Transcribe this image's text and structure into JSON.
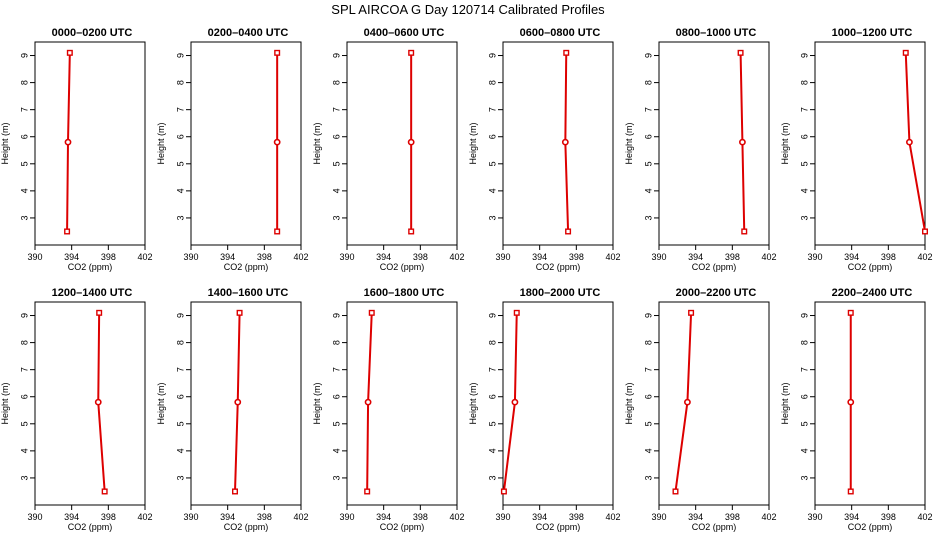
{
  "page": {
    "title": "SPL AIRCOA G  Day 120714  Calibrated Profiles"
  },
  "colors": {
    "series": "#dd0000",
    "axis": "#000000"
  },
  "chart_data": [
    {
      "type": "line",
      "title": "0000–0200 UTC",
      "xlabel": "CO2 (ppm)",
      "ylabel": "Height (m)",
      "xlim": [
        390,
        402
      ],
      "ylim": [
        2,
        9.5
      ],
      "xticks": [
        390,
        394,
        398,
        402
      ],
      "yticks": [
        3,
        4,
        5,
        6,
        7,
        8,
        9
      ],
      "series": [
        {
          "x": [
            393.5,
            393.6,
            393.8
          ],
          "y": [
            2.5,
            5.8,
            9.1
          ]
        }
      ]
    },
    {
      "type": "line",
      "title": "0200–0400 UTC",
      "xlabel": "CO2 (ppm)",
      "ylabel": "Height (m)",
      "xlim": [
        390,
        402
      ],
      "ylim": [
        2,
        9.5
      ],
      "xticks": [
        390,
        394,
        398,
        402
      ],
      "yticks": [
        3,
        4,
        5,
        6,
        7,
        8,
        9
      ],
      "series": [
        {
          "x": [
            399.4,
            399.4,
            399.4
          ],
          "y": [
            2.5,
            5.8,
            9.1
          ]
        }
      ]
    },
    {
      "type": "line",
      "title": "0400–0600 UTC",
      "xlabel": "CO2 (ppm)",
      "ylabel": "Height (m)",
      "xlim": [
        390,
        402
      ],
      "ylim": [
        2,
        9.5
      ],
      "xticks": [
        390,
        394,
        398,
        402
      ],
      "yticks": [
        3,
        4,
        5,
        6,
        7,
        8,
        9
      ],
      "series": [
        {
          "x": [
            397.0,
            397.0,
            397.0
          ],
          "y": [
            2.5,
            5.8,
            9.1
          ]
        }
      ]
    },
    {
      "type": "line",
      "title": "0600–0800 UTC",
      "xlabel": "CO2 (ppm)",
      "ylabel": "Height (m)",
      "xlim": [
        390,
        402
      ],
      "ylim": [
        2,
        9.5
      ],
      "xticks": [
        390,
        394,
        398,
        402
      ],
      "yticks": [
        3,
        4,
        5,
        6,
        7,
        8,
        9
      ],
      "series": [
        {
          "x": [
            397.1,
            396.8,
            396.9
          ],
          "y": [
            2.5,
            5.8,
            9.1
          ]
        }
      ]
    },
    {
      "type": "line",
      "title": "0800–1000 UTC",
      "xlabel": "CO2 (ppm)",
      "ylabel": "Height (m)",
      "xlim": [
        390,
        402
      ],
      "ylim": [
        2,
        9.5
      ],
      "xticks": [
        390,
        394,
        398,
        402
      ],
      "yticks": [
        3,
        4,
        5,
        6,
        7,
        8,
        9
      ],
      "series": [
        {
          "x": [
            399.3,
            399.1,
            398.9
          ],
          "y": [
            2.5,
            5.8,
            9.1
          ]
        }
      ]
    },
    {
      "type": "line",
      "title": "1000–1200 UTC",
      "xlabel": "CO2 (ppm)",
      "ylabel": "Height (m)",
      "xlim": [
        390,
        402
      ],
      "ylim": [
        2,
        9.5
      ],
      "xticks": [
        390,
        394,
        398,
        402
      ],
      "yticks": [
        3,
        4,
        5,
        6,
        7,
        8,
        9
      ],
      "series": [
        {
          "x": [
            402.0,
            400.3,
            399.9
          ],
          "y": [
            2.5,
            5.8,
            9.1
          ]
        }
      ]
    },
    {
      "type": "line",
      "title": "1200–1400 UTC",
      "xlabel": "CO2 (ppm)",
      "ylabel": "Height (m)",
      "xlim": [
        390,
        402
      ],
      "ylim": [
        2,
        9.5
      ],
      "xticks": [
        390,
        394,
        398,
        402
      ],
      "yticks": [
        3,
        4,
        5,
        6,
        7,
        8,
        9
      ],
      "series": [
        {
          "x": [
            397.6,
            396.9,
            397.0
          ],
          "y": [
            2.5,
            5.8,
            9.1
          ]
        }
      ]
    },
    {
      "type": "line",
      "title": "1400–1600 UTC",
      "xlabel": "CO2 (ppm)",
      "ylabel": "Height (m)",
      "xlim": [
        390,
        402
      ],
      "ylim": [
        2,
        9.5
      ],
      "xticks": [
        390,
        394,
        398,
        402
      ],
      "yticks": [
        3,
        4,
        5,
        6,
        7,
        8,
        9
      ],
      "series": [
        {
          "x": [
            394.8,
            395.1,
            395.3
          ],
          "y": [
            2.5,
            5.8,
            9.1
          ]
        }
      ]
    },
    {
      "type": "line",
      "title": "1600–1800 UTC",
      "xlabel": "CO2 (ppm)",
      "ylabel": "Height (m)",
      "xlim": [
        390,
        402
      ],
      "ylim": [
        2,
        9.5
      ],
      "xticks": [
        390,
        394,
        398,
        402
      ],
      "yticks": [
        3,
        4,
        5,
        6,
        7,
        8,
        9
      ],
      "series": [
        {
          "x": [
            392.2,
            392.3,
            392.7
          ],
          "y": [
            2.5,
            5.8,
            9.1
          ]
        }
      ]
    },
    {
      "type": "line",
      "title": "1800–2000 UTC",
      "xlabel": "CO2 (ppm)",
      "ylabel": "Height (m)",
      "xlim": [
        390,
        402
      ],
      "ylim": [
        2,
        9.5
      ],
      "xticks": [
        390,
        394,
        398,
        402
      ],
      "yticks": [
        3,
        4,
        5,
        6,
        7,
        8,
        9
      ],
      "series": [
        {
          "x": [
            390.1,
            391.3,
            391.5
          ],
          "y": [
            2.5,
            5.8,
            9.1
          ]
        }
      ]
    },
    {
      "type": "line",
      "title": "2000–2200 UTC",
      "xlabel": "CO2 (ppm)",
      "ylabel": "Height (m)",
      "xlim": [
        390,
        402
      ],
      "ylim": [
        2,
        9.5
      ],
      "xticks": [
        390,
        394,
        398,
        402
      ],
      "yticks": [
        3,
        4,
        5,
        6,
        7,
        8,
        9
      ],
      "series": [
        {
          "x": [
            391.8,
            393.1,
            393.5
          ],
          "y": [
            2.5,
            5.8,
            9.1
          ]
        }
      ]
    },
    {
      "type": "line",
      "title": "2200–2400 UTC",
      "xlabel": "CO2 (ppm)",
      "ylabel": "Height (m)",
      "xlim": [
        390,
        402
      ],
      "ylim": [
        2,
        9.5
      ],
      "xticks": [
        390,
        394,
        398,
        402
      ],
      "yticks": [
        3,
        4,
        5,
        6,
        7,
        8,
        9
      ],
      "series": [
        {
          "x": [
            393.9,
            393.9,
            393.9
          ],
          "y": [
            2.5,
            5.8,
            9.1
          ]
        }
      ]
    }
  ]
}
